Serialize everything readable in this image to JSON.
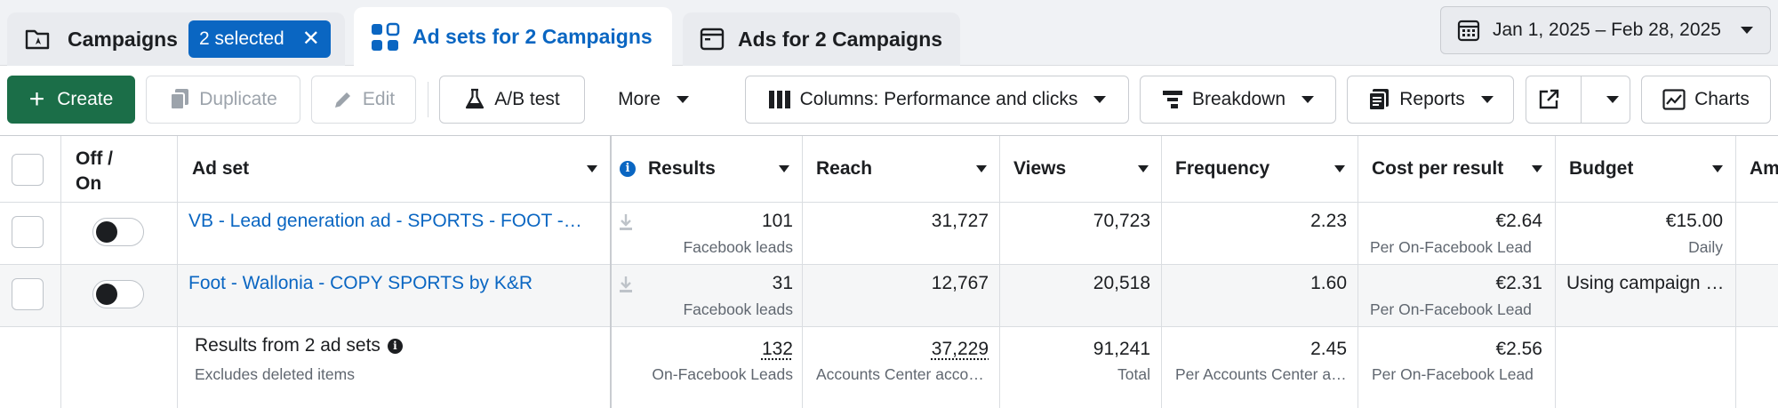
{
  "tabs": {
    "campaigns": {
      "label": "Campaigns",
      "selected_badge": "2 selected",
      "clear": "✕"
    },
    "adsets": {
      "label": "Ad sets for 2 Campaigns"
    },
    "ads": {
      "label": "Ads for 2 Campaigns"
    }
  },
  "date_range": "Jan 1, 2025 – Feb 28, 2025",
  "toolbar": {
    "create": "Create",
    "duplicate": "Duplicate",
    "edit": "Edit",
    "ab_test": "A/B test",
    "more": "More",
    "columns": "Columns: Performance and clicks",
    "breakdown": "Breakdown",
    "reports": "Reports",
    "charts": "Charts"
  },
  "columns": {
    "off_on_line1": "Off /",
    "off_on_line2": "On",
    "ad_set": "Ad set",
    "results": "Results",
    "reach": "Reach",
    "views": "Views",
    "frequency": "Frequency",
    "cost_per_result": "Cost per result",
    "budget": "Budget",
    "amount_partial": "Am"
  },
  "rows": [
    {
      "name": "VB - Lead generation ad - SPORTS - FOOT - Wallonia",
      "results": "101",
      "results_sub": "Facebook leads",
      "reach": "31,727",
      "views": "70,723",
      "frequency": "2.23",
      "cost": "€2.64",
      "cost_sub": "Per On-Facebook Lead",
      "budget": "€15.00",
      "budget_sub": "Daily",
      "enabled": false
    },
    {
      "name": "Foot - Wallonia - COPY SPORTS by K&R",
      "results": "31",
      "results_sub": "Facebook leads",
      "reach": "12,767",
      "views": "20,518",
      "frequency": "1.60",
      "cost": "€2.31",
      "cost_sub": "Per On-Facebook Lead",
      "budget": "Using campaign budget",
      "budget_sub": "",
      "enabled": false
    }
  ],
  "summary": {
    "title": "Results from 2 ad sets",
    "subtitle": "Excludes deleted items",
    "results": "132",
    "results_sub": "On-Facebook Leads",
    "reach": "37,229",
    "reach_sub": "Accounts Center accounts",
    "views": "91,241",
    "views_sub": "Total",
    "frequency": "2.45",
    "frequency_sub": "Per Accounts Center account",
    "cost": "€2.56",
    "cost_sub": "Per On-Facebook Lead"
  },
  "colors": {
    "accent": "#0a66c2",
    "create_green": "#1b6e48"
  }
}
